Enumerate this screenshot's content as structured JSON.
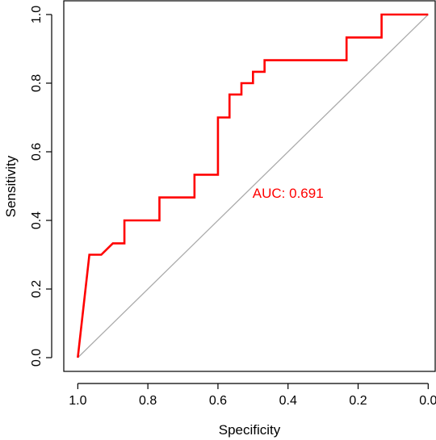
{
  "chart_data": {
    "type": "line",
    "xlabel": "Specificity",
    "ylabel": "Sensitivity",
    "xlim": [
      1.04,
      -0.02
    ],
    "ylim": [
      -0.04,
      1.04
    ],
    "x_reversed": true,
    "x_ticks": [
      1.0,
      0.8,
      0.6,
      0.4,
      0.2,
      0.0
    ],
    "x_tick_labels": [
      "1.0",
      "0.8",
      "0.6",
      "0.4",
      "0.2",
      "0.0"
    ],
    "y_ticks": [
      0.0,
      0.2,
      0.4,
      0.6,
      0.8,
      1.0
    ],
    "y_tick_labels": [
      "0.0",
      "0.2",
      "0.4",
      "0.6",
      "0.8",
      "1.0"
    ],
    "grid": false,
    "annotation": {
      "text": "AUC: 0.691",
      "x": 0.4,
      "y": 0.48
    },
    "colors": {
      "curve": "#ff0000",
      "diagonal": "#aaaaaa",
      "annotation": "#ff0000"
    },
    "series": [
      {
        "x": [
          1.0,
          0.967,
          0.933,
          0.9,
          0.867,
          0.867,
          0.767,
          0.767,
          0.667,
          0.667,
          0.6,
          0.6,
          0.567,
          0.567,
          0.533,
          0.533,
          0.5,
          0.5,
          0.467,
          0.467,
          0.233,
          0.233,
          0.133,
          0.133,
          0.0
        ],
        "y": [
          0.0,
          0.3,
          0.3,
          0.333,
          0.333,
          0.4,
          0.4,
          0.467,
          0.467,
          0.533,
          0.533,
          0.7,
          0.7,
          0.767,
          0.767,
          0.8,
          0.8,
          0.833,
          0.833,
          0.867,
          0.867,
          0.933,
          0.933,
          1.0,
          1.0
        ]
      }
    ],
    "reference_line": {
      "x": [
        1.0,
        0.0
      ],
      "y": [
        0.0,
        1.0
      ]
    }
  }
}
